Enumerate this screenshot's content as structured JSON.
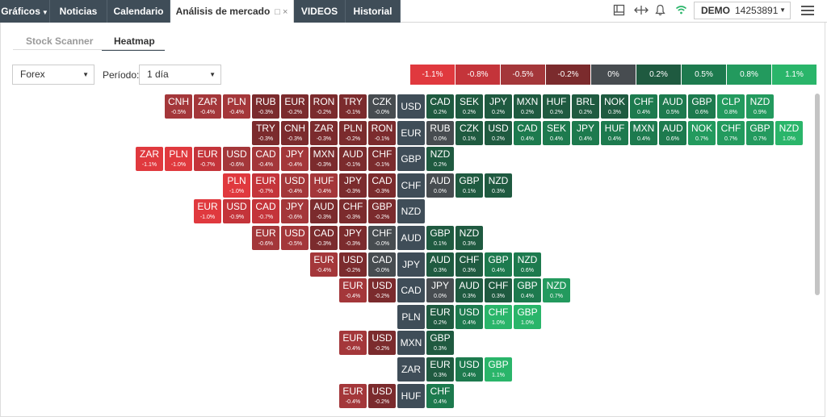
{
  "topbar": {
    "tabs": [
      {
        "label": "Gráficos",
        "dropdown": true,
        "active": false
      },
      {
        "label": "Noticias",
        "active": false
      },
      {
        "label": "Calendario",
        "active": false
      },
      {
        "label": "Análisis de mercado",
        "active": true,
        "icons": "□ ×"
      },
      {
        "label": "VIDEOS",
        "active": false
      },
      {
        "label": "Historial",
        "active": false
      }
    ],
    "icons": [
      "layout-icon",
      "transfer-icon",
      "bell-icon",
      "wifi-icon"
    ],
    "account": {
      "mode": "DEMO",
      "number": "14253891"
    }
  },
  "subtabs": [
    {
      "label": "Stock Scanner",
      "active": false
    },
    {
      "label": "Heatmap",
      "active": true
    }
  ],
  "filters": {
    "market": "Forex",
    "period_label": "Período:",
    "period": "1 día"
  },
  "legend": [
    {
      "label": "-1.1%",
      "color": "#e0393e"
    },
    {
      "label": "-0.8%",
      "color": "#c4343a"
    },
    {
      "label": "-0.5%",
      "color": "#a4373a"
    },
    {
      "label": "-0.2%",
      "color": "#7b2b2d"
    },
    {
      "label": "0%",
      "color": "#474c50"
    },
    {
      "label": "0.2%",
      "color": "#1f5a40"
    },
    {
      "label": "0.5%",
      "color": "#1d7a4e"
    },
    {
      "label": "0.8%",
      "color": "#239a5e"
    },
    {
      "label": "1.1%",
      "color": "#2ab56a"
    }
  ],
  "heatmap": [
    {
      "base": "USD",
      "negatives": [
        {
          "c": "CNH",
          "v": -0.5
        },
        {
          "c": "ZAR",
          "v": -0.4
        },
        {
          "c": "PLN",
          "v": -0.4
        },
        {
          "c": "RUB",
          "v": -0.3
        },
        {
          "c": "EUR",
          "v": -0.2
        },
        {
          "c": "RON",
          "v": -0.2
        },
        {
          "c": "TRY",
          "v": -0.1
        },
        {
          "c": "CZK",
          "v": -0.0
        }
      ],
      "positives": [
        {
          "c": "CAD",
          "v": 0.2
        },
        {
          "c": "SEK",
          "v": 0.2
        },
        {
          "c": "JPY",
          "v": 0.2
        },
        {
          "c": "MXN",
          "v": 0.2
        },
        {
          "c": "HUF",
          "v": 0.2
        },
        {
          "c": "BRL",
          "v": 0.2
        },
        {
          "c": "NOK",
          "v": 0.3
        },
        {
          "c": "CHF",
          "v": 0.4
        },
        {
          "c": "AUD",
          "v": 0.5
        },
        {
          "c": "GBP",
          "v": 0.6
        },
        {
          "c": "CLP",
          "v": 0.8
        },
        {
          "c": "NZD",
          "v": 0.9
        }
      ]
    },
    {
      "base": "EUR",
      "negatives": [
        {
          "c": "TRY",
          "v": -0.3
        },
        {
          "c": "CNH",
          "v": -0.3
        },
        {
          "c": "ZAR",
          "v": -0.3
        },
        {
          "c": "PLN",
          "v": -0.2
        },
        {
          "c": "RON",
          "v": -0.1
        }
      ],
      "positives": [
        {
          "c": "RUB",
          "v": 0.0
        },
        {
          "c": "CZK",
          "v": 0.1
        },
        {
          "c": "USD",
          "v": 0.2
        },
        {
          "c": "CAD",
          "v": 0.4
        },
        {
          "c": "SEK",
          "v": 0.4
        },
        {
          "c": "JPY",
          "v": 0.4
        },
        {
          "c": "HUF",
          "v": 0.4
        },
        {
          "c": "MXN",
          "v": 0.4
        },
        {
          "c": "AUD",
          "v": 0.6
        },
        {
          "c": "NOK",
          "v": 0.7
        },
        {
          "c": "CHF",
          "v": 0.7
        },
        {
          "c": "GBP",
          "v": 0.7
        },
        {
          "c": "NZD",
          "v": 1.0
        }
      ]
    },
    {
      "base": "GBP",
      "negatives": [
        {
          "c": "ZAR",
          "v": -1.1
        },
        {
          "c": "PLN",
          "v": -1.0
        },
        {
          "c": "EUR",
          "v": -0.7
        },
        {
          "c": "USD",
          "v": -0.6
        },
        {
          "c": "CAD",
          "v": -0.4
        },
        {
          "c": "JPY",
          "v": -0.4
        },
        {
          "c": "MXN",
          "v": -0.3
        },
        {
          "c": "AUD",
          "v": -0.1
        },
        {
          "c": "CHF",
          "v": -0.1
        }
      ],
      "positives": [
        {
          "c": "NZD",
          "v": 0.2
        }
      ]
    },
    {
      "base": "CHF",
      "negatives": [
        {
          "c": "PLN",
          "v": -1.0
        },
        {
          "c": "EUR",
          "v": -0.7
        },
        {
          "c": "USD",
          "v": -0.4
        },
        {
          "c": "HUF",
          "v": -0.4
        },
        {
          "c": "JPY",
          "v": -0.3
        },
        {
          "c": "CAD",
          "v": -0.3
        }
      ],
      "positives": [
        {
          "c": "AUD",
          "v": 0.0
        },
        {
          "c": "GBP",
          "v": 0.1
        },
        {
          "c": "NZD",
          "v": 0.3
        }
      ]
    },
    {
      "base": "NZD",
      "negatives": [
        {
          "c": "EUR",
          "v": -1.0
        },
        {
          "c": "USD",
          "v": -0.9
        },
        {
          "c": "CAD",
          "v": -0.7
        },
        {
          "c": "JPY",
          "v": -0.6
        },
        {
          "c": "AUD",
          "v": -0.3
        },
        {
          "c": "CHF",
          "v": -0.3
        },
        {
          "c": "GBP",
          "v": -0.2
        }
      ],
      "positives": []
    },
    {
      "base": "AUD",
      "negatives": [
        {
          "c": "EUR",
          "v": -0.6
        },
        {
          "c": "USD",
          "v": -0.5
        },
        {
          "c": "CAD",
          "v": -0.3
        },
        {
          "c": "JPY",
          "v": -0.3
        },
        {
          "c": "CHF",
          "v": -0.0
        }
      ],
      "positives": [
        {
          "c": "GBP",
          "v": 0.1
        },
        {
          "c": "NZD",
          "v": 0.3
        }
      ]
    },
    {
      "base": "JPY",
      "negatives": [
        {
          "c": "EUR",
          "v": -0.4
        },
        {
          "c": "USD",
          "v": -0.2
        },
        {
          "c": "CAD",
          "v": -0.0
        }
      ],
      "positives": [
        {
          "c": "AUD",
          "v": 0.3
        },
        {
          "c": "CHF",
          "v": 0.3
        },
        {
          "c": "GBP",
          "v": 0.4
        },
        {
          "c": "NZD",
          "v": 0.6
        }
      ]
    },
    {
      "base": "CAD",
      "negatives": [
        {
          "c": "EUR",
          "v": -0.4
        },
        {
          "c": "USD",
          "v": -0.2
        }
      ],
      "positives": [
        {
          "c": "JPY",
          "v": 0.0
        },
        {
          "c": "AUD",
          "v": 0.3
        },
        {
          "c": "CHF",
          "v": 0.3
        },
        {
          "c": "GBP",
          "v": 0.4
        },
        {
          "c": "NZD",
          "v": 0.7
        }
      ]
    },
    {
      "base": "PLN",
      "negatives": [],
      "positives": [
        {
          "c": "EUR",
          "v": 0.2
        },
        {
          "c": "USD",
          "v": 0.4
        },
        {
          "c": "CHF",
          "v": 1.0
        },
        {
          "c": "GBP",
          "v": 1.0
        }
      ]
    },
    {
      "base": "MXN",
      "negatives": [
        {
          "c": "EUR",
          "v": -0.4
        },
        {
          "c": "USD",
          "v": -0.2
        }
      ],
      "positives": [
        {
          "c": "GBP",
          "v": 0.3
        }
      ]
    },
    {
      "base": "ZAR",
      "negatives": [],
      "positives": [
        {
          "c": "EUR",
          "v": 0.3
        },
        {
          "c": "USD",
          "v": 0.4
        },
        {
          "c": "GBP",
          "v": 1.1
        }
      ]
    },
    {
      "base": "HUF",
      "negatives": [
        {
          "c": "EUR",
          "v": -0.4
        },
        {
          "c": "USD",
          "v": -0.2
        }
      ],
      "positives": [
        {
          "c": "CHF",
          "v": 0.4
        }
      ]
    }
  ]
}
